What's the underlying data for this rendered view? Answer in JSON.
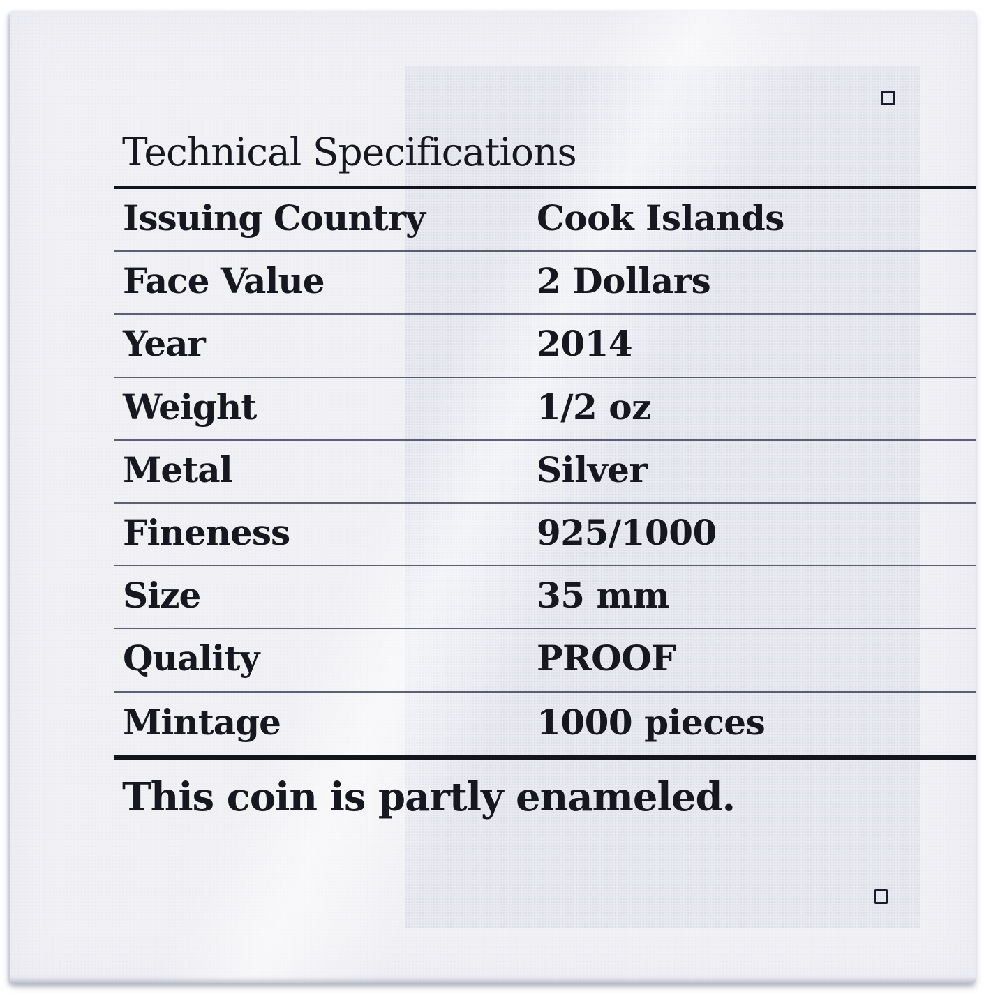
{
  "document": {
    "title": "Technical Specifications",
    "footnote": "This coin is partly enameled."
  },
  "table": {
    "rows": [
      {
        "label": "Issuing Country",
        "value": "Cook Islands"
      },
      {
        "label": "Face Value",
        "value": "2 Dollars"
      },
      {
        "label": "Year",
        "value": "2014"
      },
      {
        "label": "Weight",
        "value": "1/2 oz"
      },
      {
        "label": "Metal",
        "value": "Silver"
      },
      {
        "label": "Fineness",
        "value": "925/1000"
      },
      {
        "label": "Size",
        "value": "35 mm"
      },
      {
        "label": "Quality",
        "value": "PROOF"
      },
      {
        "label": "Mintage",
        "value": "1000 pieces"
      }
    ]
  },
  "colors": {
    "ink": "#17171f",
    "paper": "#f1f1f5",
    "rule_thin": "#32324e",
    "rule_thick": "#14141c"
  }
}
